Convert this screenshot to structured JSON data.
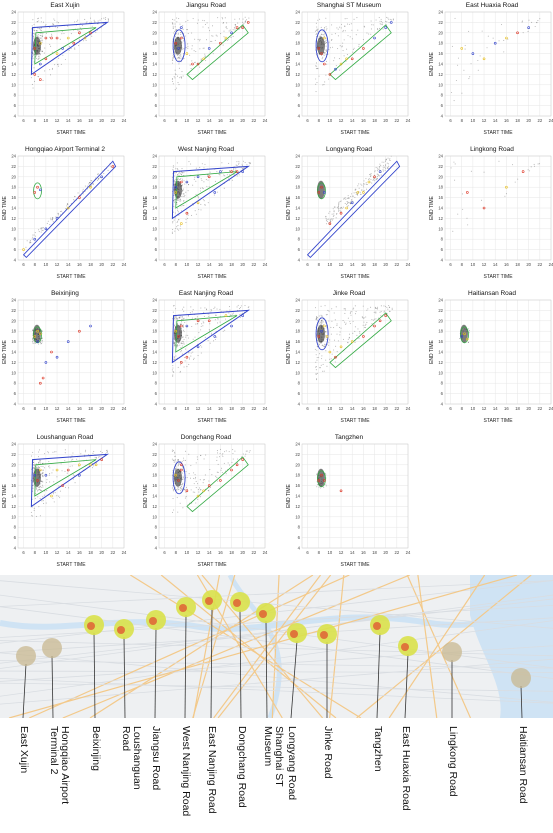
{
  "chart_data": {
    "type": "scatter",
    "axis": {
      "xlabel": "START TIME",
      "ylabel": "END TIME",
      "xticks": [
        6,
        8,
        10,
        12,
        14,
        16,
        18,
        20,
        22,
        24
      ],
      "yticks": [
        4,
        6,
        8,
        10,
        12,
        14,
        16,
        18,
        20,
        22,
        24
      ],
      "xlim": [
        5,
        24
      ],
      "ylim": [
        4,
        24
      ]
    },
    "panels": [
      {
        "name": "East Xujin",
        "pattern": "triangle",
        "density": 1,
        "points": [
          [
            8,
            17
          ],
          [
            9,
            18
          ],
          [
            10,
            19
          ],
          [
            11,
            19
          ],
          [
            12,
            19
          ],
          [
            14,
            19
          ],
          [
            16,
            20
          ],
          [
            18,
            20
          ],
          [
            9,
            14
          ],
          [
            10,
            15
          ],
          [
            12,
            16
          ],
          [
            15,
            18
          ],
          [
            13,
            17
          ],
          [
            17,
            19
          ],
          [
            8,
            12
          ],
          [
            9,
            11
          ]
        ]
      },
      {
        "name": "Jiangsu Road",
        "pattern": "morning-peak",
        "density": 1,
        "points": [
          [
            8,
            18
          ],
          [
            9,
            19
          ],
          [
            8.5,
            17
          ],
          [
            9,
            21
          ],
          [
            10,
            16
          ],
          [
            12,
            14
          ],
          [
            14,
            17
          ],
          [
            17,
            19
          ],
          [
            18,
            20
          ],
          [
            20,
            21
          ],
          [
            11,
            14
          ],
          [
            13,
            15
          ],
          [
            16,
            18
          ],
          [
            19,
            21
          ],
          [
            21,
            22
          ]
        ]
      },
      {
        "name": "Shanghai ST Museum",
        "pattern": "clusters",
        "density": 0.8,
        "points": [
          [
            8,
            17
          ],
          [
            9,
            19
          ],
          [
            8.5,
            16
          ],
          [
            10,
            12
          ],
          [
            12,
            14
          ],
          [
            14,
            15
          ],
          [
            16,
            17
          ],
          [
            18,
            19
          ],
          [
            20,
            21
          ],
          [
            11,
            13
          ],
          [
            13,
            15
          ],
          [
            21,
            22
          ],
          [
            9,
            14
          ]
        ]
      },
      {
        "name": "East Huaxia Road",
        "pattern": "sparse",
        "density": 0.15,
        "points": [
          [
            8,
            17
          ],
          [
            10,
            16
          ],
          [
            12,
            15
          ],
          [
            14,
            18
          ],
          [
            16,
            19
          ],
          [
            18,
            20
          ],
          [
            20,
            21
          ]
        ]
      },
      {
        "name": "Hongqiao Airport Terminal 2",
        "pattern": "diagonal",
        "density": 0.4,
        "points": [
          [
            8,
            17
          ],
          [
            8.5,
            18
          ],
          [
            9,
            17.5
          ],
          [
            6,
            6
          ],
          [
            8,
            8
          ],
          [
            10,
            10
          ],
          [
            12,
            12
          ],
          [
            14,
            14
          ],
          [
            16,
            16
          ],
          [
            18,
            18
          ],
          [
            20,
            20
          ],
          [
            22,
            22
          ]
        ]
      },
      {
        "name": "West Nanjing Road",
        "pattern": "triangle",
        "density": 1.2,
        "points": [
          [
            8,
            18
          ],
          [
            9,
            19
          ],
          [
            8,
            17
          ],
          [
            10,
            19
          ],
          [
            12,
            20
          ],
          [
            14,
            20
          ],
          [
            16,
            21
          ],
          [
            18,
            21
          ],
          [
            20,
            21
          ],
          [
            10,
            13
          ],
          [
            12,
            15
          ],
          [
            15,
            17
          ],
          [
            19,
            21
          ],
          [
            9,
            11
          ]
        ]
      },
      {
        "name": "Longyang Road",
        "pattern": "band",
        "density": 0.7,
        "points": [
          [
            8,
            17
          ],
          [
            8.5,
            18
          ],
          [
            9,
            17
          ],
          [
            10,
            11
          ],
          [
            12,
            13
          ],
          [
            14,
            15
          ],
          [
            16,
            17
          ],
          [
            17,
            19
          ],
          [
            18,
            20
          ],
          [
            19,
            21
          ],
          [
            15,
            17
          ],
          [
            13,
            14
          ]
        ]
      },
      {
        "name": "Lingkong Road",
        "pattern": "sparse",
        "density": 0.1,
        "points": [
          [
            9,
            17
          ],
          [
            12,
            14
          ],
          [
            16,
            18
          ],
          [
            19,
            21
          ]
        ]
      },
      {
        "name": "Beixinjing",
        "pattern": "morning-only",
        "density": 0.35,
        "points": [
          [
            8,
            17
          ],
          [
            8.5,
            18
          ],
          [
            9,
            17.5
          ],
          [
            8.5,
            16
          ],
          [
            11,
            14
          ],
          [
            12,
            13
          ],
          [
            14,
            16
          ],
          [
            16,
            18
          ],
          [
            18,
            19
          ],
          [
            10,
            12
          ],
          [
            9,
            8
          ],
          [
            9.5,
            9
          ]
        ]
      },
      {
        "name": "East Nanjing Road",
        "pattern": "triangle",
        "density": 1.1,
        "points": [
          [
            8,
            18
          ],
          [
            9,
            19
          ],
          [
            8.5,
            17
          ],
          [
            10,
            19
          ],
          [
            12,
            20
          ],
          [
            14,
            20
          ],
          [
            17,
            21
          ],
          [
            20,
            21
          ],
          [
            12,
            15
          ],
          [
            15,
            17
          ],
          [
            18,
            19
          ],
          [
            10,
            13
          ],
          [
            9,
            12
          ]
        ]
      },
      {
        "name": "Jinke Road",
        "pattern": "morning-peak",
        "density": 1,
        "points": [
          [
            8,
            17
          ],
          [
            8.5,
            18
          ],
          [
            9,
            19
          ],
          [
            9.5,
            17
          ],
          [
            10,
            14
          ],
          [
            12,
            15
          ],
          [
            14,
            16
          ],
          [
            16,
            17
          ],
          [
            18,
            19
          ],
          [
            19,
            20
          ],
          [
            20,
            21
          ],
          [
            11,
            13
          ]
        ]
      },
      {
        "name": "Haitiansan Road",
        "pattern": "tiny",
        "density": 0.08,
        "points": [
          [
            8,
            17
          ],
          [
            8.5,
            17.5
          ],
          [
            9,
            16.5
          ]
        ]
      },
      {
        "name": "Loushanguan Road",
        "pattern": "triangle",
        "density": 1,
        "points": [
          [
            8,
            18
          ],
          [
            9,
            19
          ],
          [
            8.5,
            17
          ],
          [
            10,
            18
          ],
          [
            12,
            19
          ],
          [
            14,
            19
          ],
          [
            16,
            20
          ],
          [
            18,
            20
          ],
          [
            20,
            21
          ],
          [
            11,
            14
          ],
          [
            13,
            16
          ],
          [
            16,
            18
          ],
          [
            19,
            20
          ]
        ]
      },
      {
        "name": "Dongchang Road",
        "pattern": "morning-peak",
        "density": 0.9,
        "points": [
          [
            8,
            18
          ],
          [
            9,
            19
          ],
          [
            8.5,
            17
          ],
          [
            9,
            20
          ],
          [
            10,
            15
          ],
          [
            12,
            14
          ],
          [
            14,
            16
          ],
          [
            16,
            17
          ],
          [
            18,
            19
          ],
          [
            19,
            20
          ],
          [
            20,
            21
          ],
          [
            13,
            15
          ]
        ]
      },
      {
        "name": "Tangzhen",
        "pattern": "tiny",
        "density": 0.12,
        "points": [
          [
            8,
            17
          ],
          [
            8.5,
            18
          ],
          [
            9,
            17
          ],
          [
            12,
            15
          ]
        ]
      }
    ]
  },
  "map": {
    "stations": [
      {
        "name": "East Xujin",
        "kind": "gray"
      },
      {
        "name": "Hongqiao Airport Terminal 2",
        "kind": "gray"
      },
      {
        "name": "Beixinjing",
        "kind": "heat"
      },
      {
        "name": "Loushanguan Road",
        "kind": "heat"
      },
      {
        "name": "Jiangsu Road",
        "kind": "heat"
      },
      {
        "name": "West Nanjing Road",
        "kind": "heat"
      },
      {
        "name": "East Nanjing Road",
        "kind": "heat"
      },
      {
        "name": "Dongchang Road",
        "kind": "heat"
      },
      {
        "name": "Shanghai ST Museum",
        "kind": "heat"
      },
      {
        "name": "Longyang Road",
        "kind": "heat"
      },
      {
        "name": "Jinke Road",
        "kind": "heat"
      },
      {
        "name": "Tangzhen",
        "kind": "heat"
      },
      {
        "name": "East Huaxia Road",
        "kind": "heat"
      },
      {
        "name": "Lingkong Road",
        "kind": "gray"
      },
      {
        "name": "Haitiansan Road",
        "kind": "gray"
      }
    ]
  },
  "labels": [
    {
      "text": "East Xujin"
    },
    {
      "text": "Hongqiao Airport\nTerminal 2"
    },
    {
      "text": "Beixinjing"
    },
    {
      "text": "Loushanguan\nRoad"
    },
    {
      "text": "Jiangsu Road"
    },
    {
      "text": "West Nanjing Road"
    },
    {
      "text": "East Nanjing Road"
    },
    {
      "text": "Dongchang Road"
    },
    {
      "text": "Shanghai ST\nMuseum"
    },
    {
      "text": "Longyang Road"
    },
    {
      "text": "Jinke Road"
    },
    {
      "text": "Tangzhen"
    },
    {
      "text": "East Huaxia Road"
    },
    {
      "text": "Lingkong Road"
    },
    {
      "text": "Haitiansan Road"
    }
  ],
  "colors": {
    "grid": "#e6e6e6",
    "density": "#333333",
    "contour_blue": "#3344cc",
    "contour_red": "#dd3322",
    "contour_green": "#33aa44",
    "contour_yellow": "#e8c020",
    "map_land": "#eef0f2",
    "map_water": "#cfe3f4",
    "map_road": "#f3c98a"
  }
}
